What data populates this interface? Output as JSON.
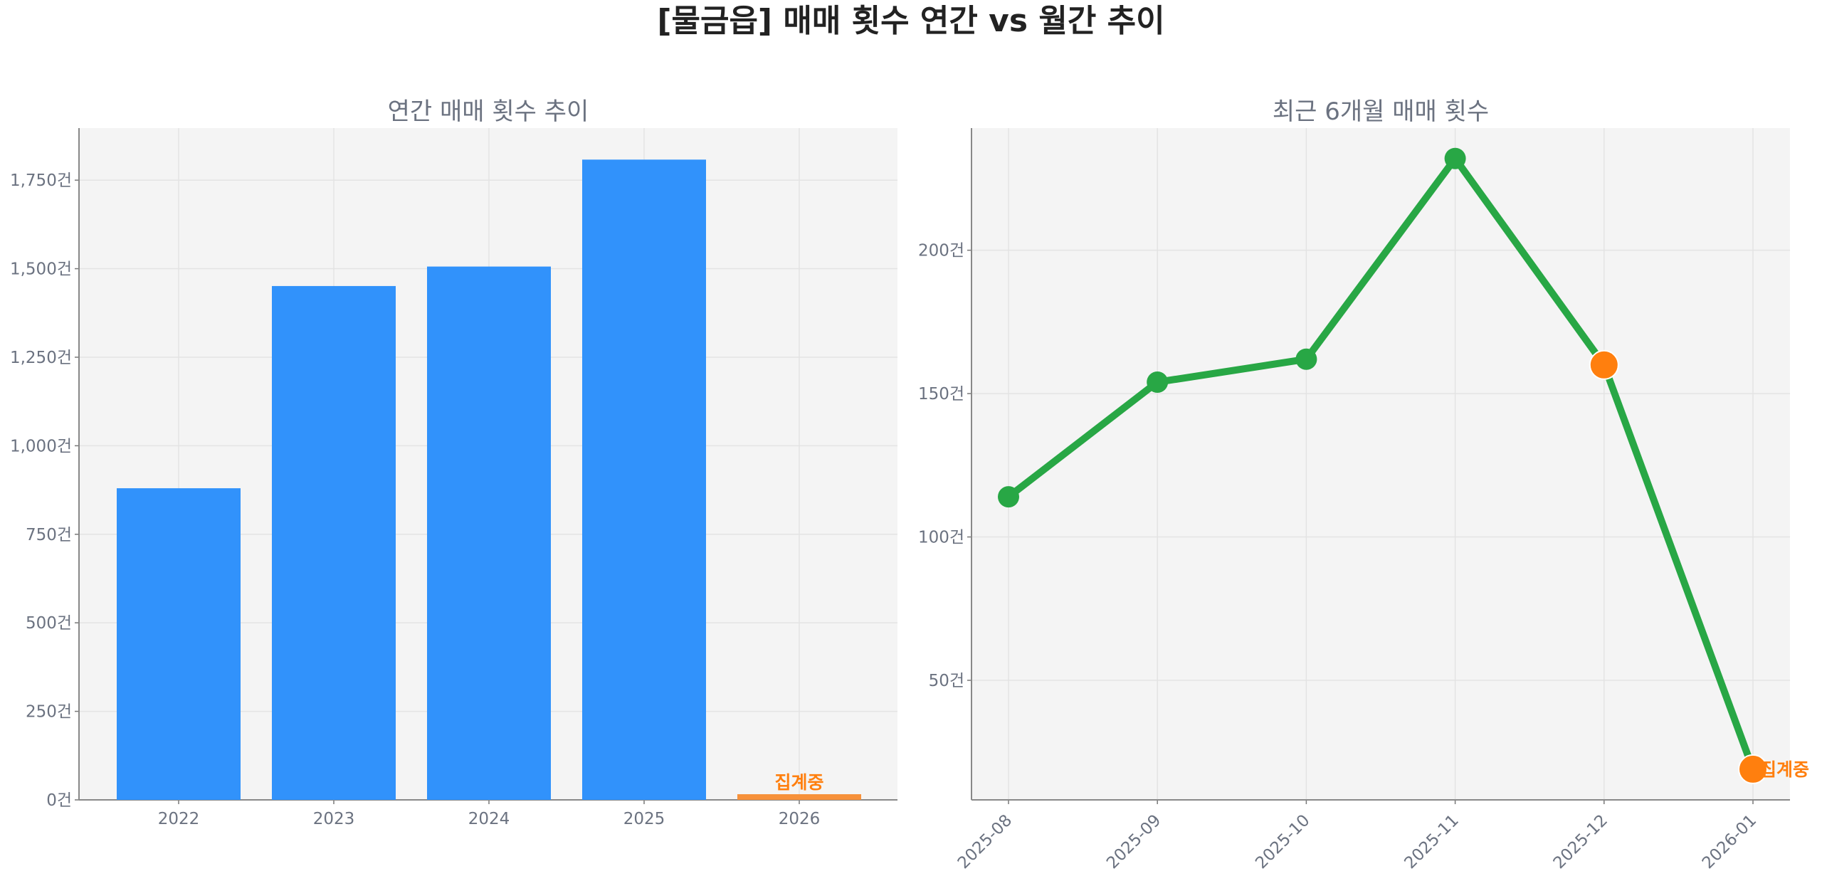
{
  "suptitle": "[물금읍] 매매 횟수 연간 vs 월간 추이",
  "colors": {
    "bar": "#3192fb",
    "bar_partial": "#f7913a",
    "line": "#28a745",
    "highlight": "#ff7f0e",
    "axes_bg": "#f4f4f4",
    "tick_text": "#6b7280"
  },
  "chart_data": [
    {
      "type": "bar",
      "title": "연간 매매 횟수 추이",
      "categories": [
        "2022",
        "2023",
        "2024",
        "2025",
        "2026"
      ],
      "values": [
        880,
        1451,
        1506,
        1808,
        16
      ],
      "partial": [
        false,
        false,
        false,
        false,
        true
      ],
      "annotation": {
        "category": "2026",
        "text": "집계중"
      },
      "ylim": [
        0,
        1897
      ],
      "yticks": [
        0,
        250,
        500,
        750,
        1000,
        1250,
        1500,
        1750
      ],
      "ytick_labels": [
        "0건",
        "250건",
        "500건",
        "750건",
        "1,000건",
        "1,250건",
        "1,500건",
        "1,750건"
      ],
      "xlabel": "",
      "ylabel": "",
      "grid": true
    },
    {
      "type": "line",
      "title": "최근 6개월 매매 횟수",
      "categories": [
        "2025-08",
        "2025-09",
        "2025-10",
        "2025-11",
        "2025-12",
        "2026-01"
      ],
      "values": [
        114,
        154,
        162,
        232,
        160,
        19
      ],
      "highlighted": [
        false,
        false,
        false,
        false,
        true,
        true
      ],
      "annotation": {
        "category": "2026-01",
        "text": "집계중"
      },
      "ylim": [
        8.3,
        242.6
      ],
      "yticks": [
        50,
        100,
        150,
        200
      ],
      "ytick_labels": [
        "50건",
        "100건",
        "150건",
        "200건"
      ],
      "xlabel": "",
      "ylabel": "",
      "grid": true
    }
  ]
}
